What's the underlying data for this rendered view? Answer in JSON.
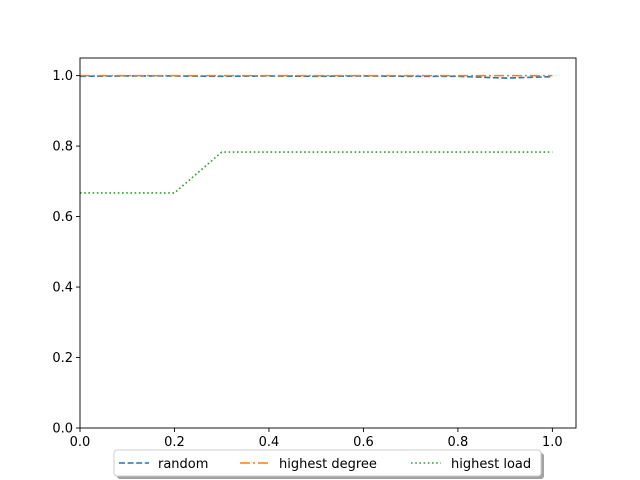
{
  "chart_data": {
    "type": "line",
    "title": "",
    "xlabel": "",
    "ylabel": "",
    "xlim": [
      0,
      1.05
    ],
    "ylim": [
      0,
      1.05
    ],
    "xticks": [
      0.0,
      0.2,
      0.4,
      0.6,
      0.8,
      1.0
    ],
    "yticks": [
      0.0,
      0.2,
      0.4,
      0.6,
      0.8,
      1.0
    ],
    "xtick_labels": [
      "0.0",
      "0.2",
      "0.4",
      "0.6",
      "0.8",
      "1.0"
    ],
    "ytick_labels": [
      "0.0",
      "0.2",
      "0.4",
      "0.6",
      "0.8",
      "1.0"
    ],
    "grid": false,
    "legend_placement": "bottom-center",
    "series": [
      {
        "name": "random",
        "color": "#1f77b4",
        "style": "dashed",
        "x": [
          0.0,
          0.1,
          0.2,
          0.3,
          0.4,
          0.5,
          0.6,
          0.7,
          0.8,
          0.9,
          1.0
        ],
        "y": [
          0.998,
          0.999,
          0.999,
          0.998,
          0.999,
          0.998,
          0.999,
          0.998,
          0.998,
          0.993,
          0.997
        ]
      },
      {
        "name": "highest degree",
        "color": "#ff7f0e",
        "style": "dashdot",
        "x": [
          0.0,
          0.1,
          0.2,
          0.3,
          0.4,
          0.5,
          0.6,
          0.7,
          0.8,
          0.9,
          1.0
        ],
        "y": [
          1.0,
          1.0,
          1.0,
          1.0,
          1.0,
          1.0,
          1.0,
          1.0,
          1.0,
          1.0,
          1.0
        ]
      },
      {
        "name": "highest load",
        "color": "#2ca02c",
        "style": "dotted",
        "x": [
          0.0,
          0.1,
          0.2,
          0.3,
          0.4,
          0.5,
          0.6,
          0.7,
          0.8,
          0.9,
          1.0
        ],
        "y": [
          0.667,
          0.667,
          0.667,
          0.783,
          0.783,
          0.783,
          0.783,
          0.783,
          0.783,
          0.783,
          0.783
        ]
      }
    ]
  }
}
